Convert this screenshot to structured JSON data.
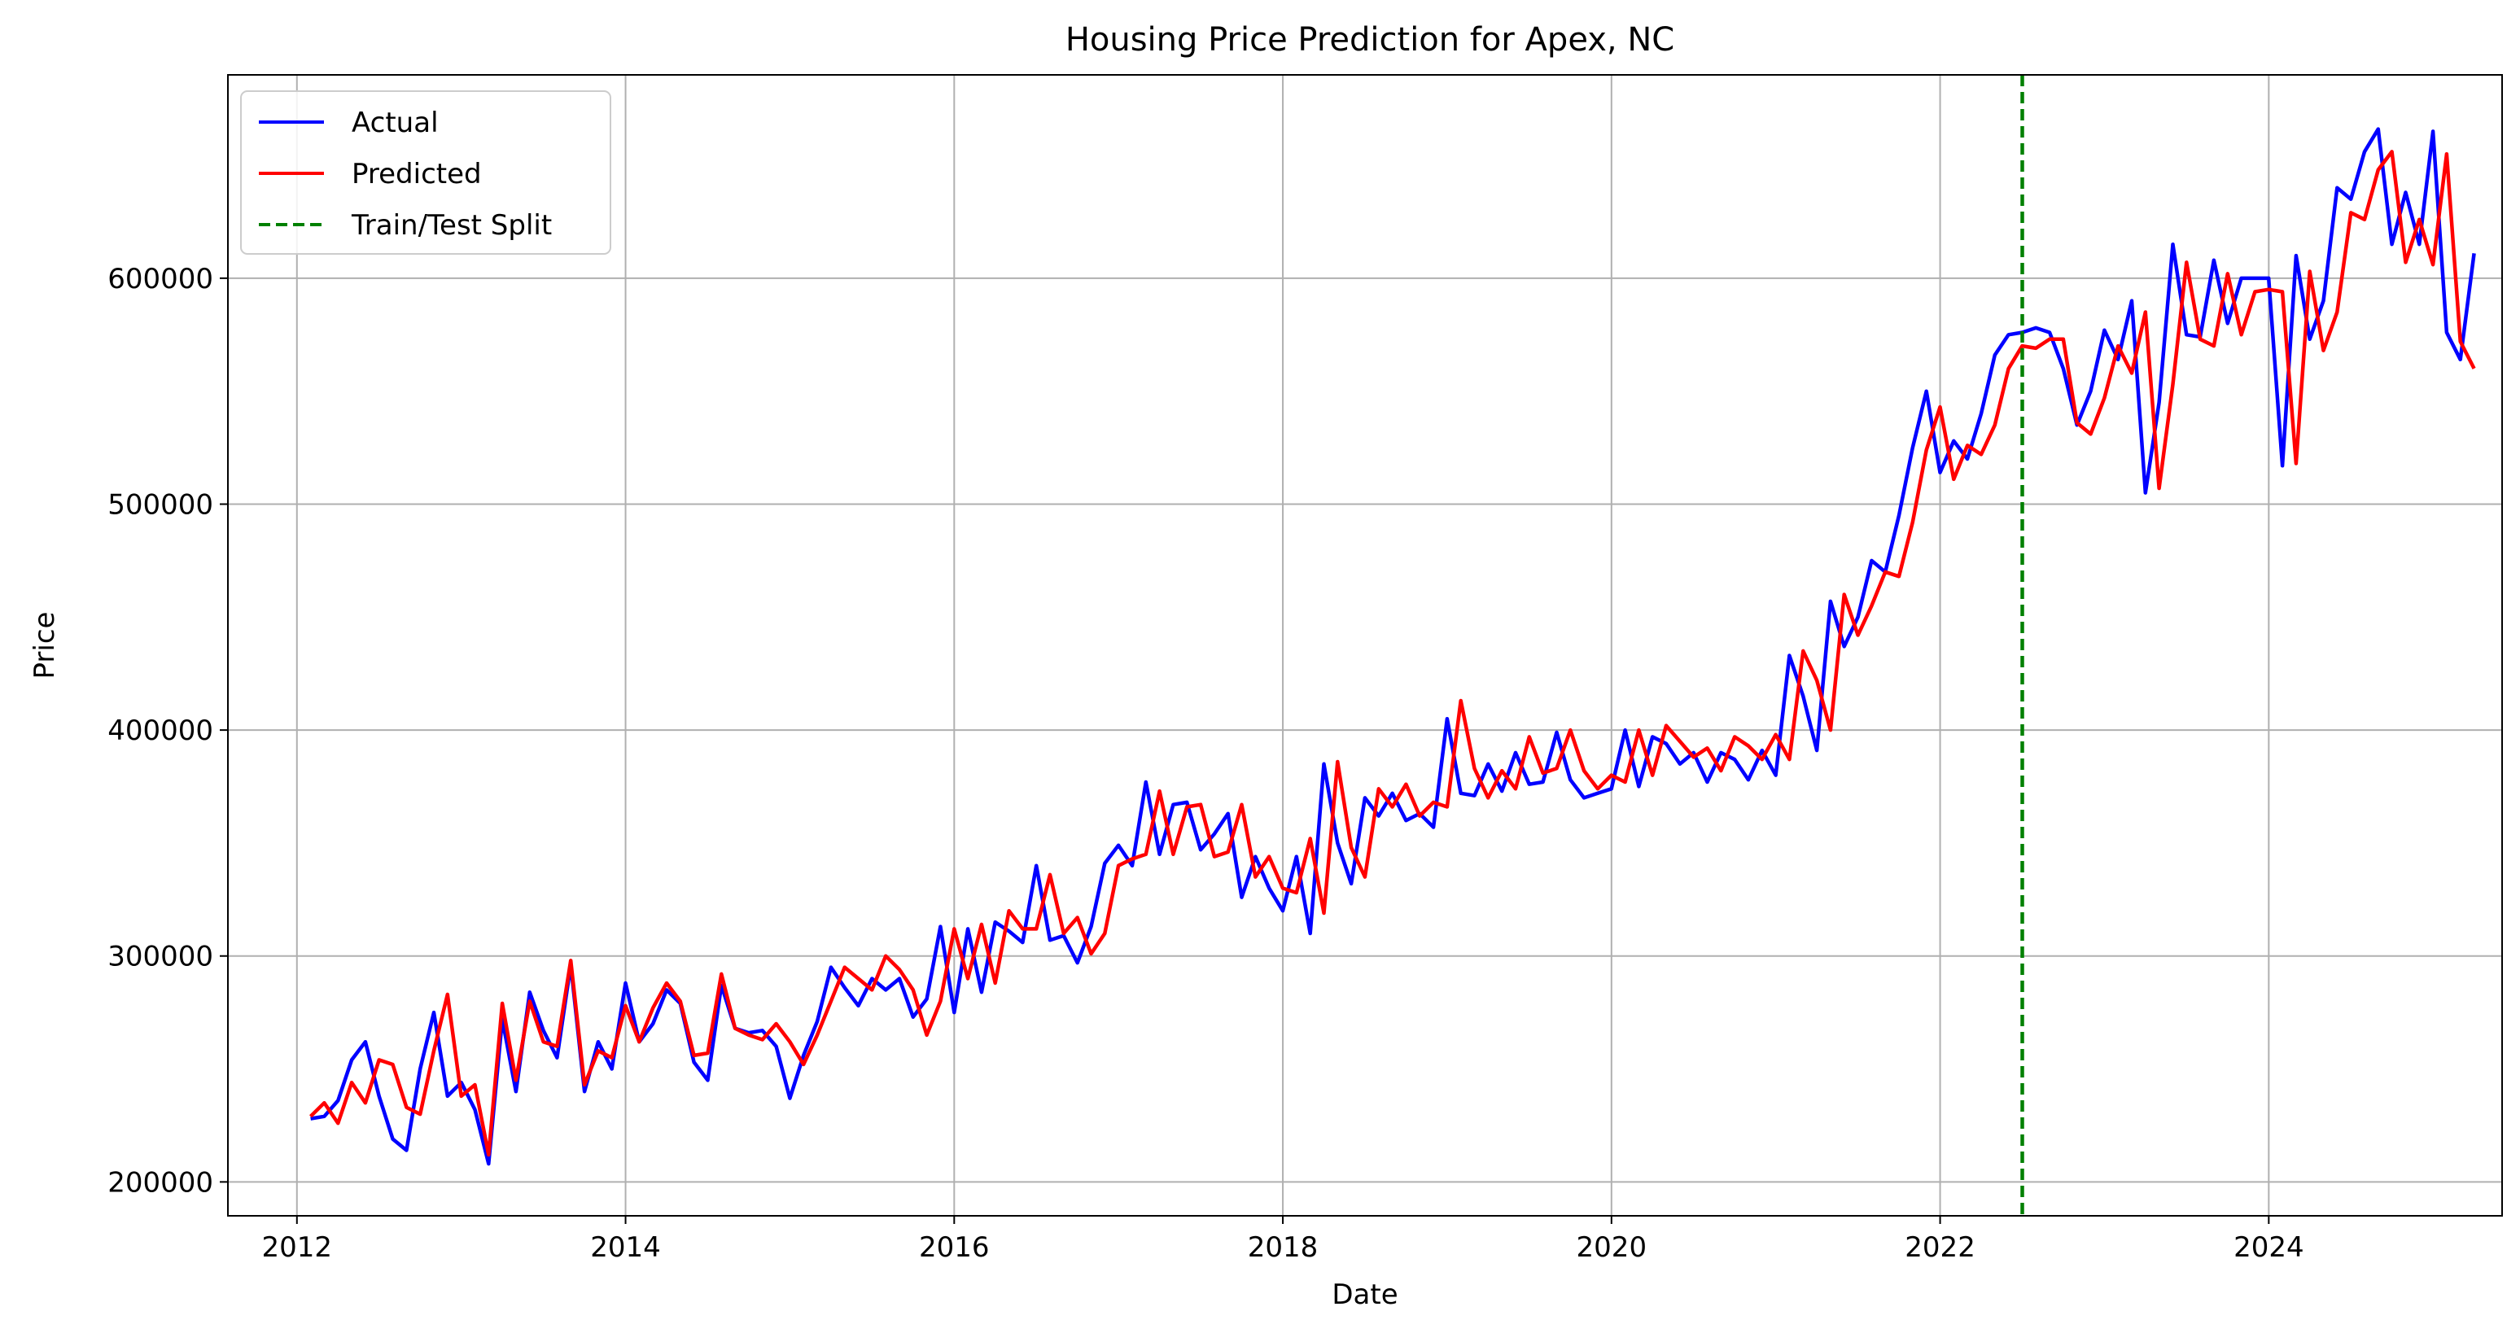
{
  "chart_data": {
    "type": "line",
    "title": "Housing Price Prediction for Apex, NC",
    "xlabel": "Date",
    "ylabel": "Price",
    "xlim": [
      2011.58,
      2025.42
    ],
    "ylim": [
      185000,
      690000
    ],
    "x_ticks": [
      2012,
      2014,
      2016,
      2018,
      2020,
      2022,
      2024
    ],
    "x_tick_labels": [
      "2012",
      "2014",
      "2016",
      "2018",
      "2020",
      "2022",
      "2024"
    ],
    "y_ticks": [
      200000,
      300000,
      400000,
      500000,
      600000
    ],
    "y_tick_labels": [
      "200000",
      "300000",
      "400000",
      "500000",
      "600000"
    ],
    "grid": true,
    "legend": {
      "placement": "upper-left",
      "entries": [
        "Actual",
        "Predicted",
        "Train/Test Split"
      ]
    },
    "split": {
      "label": "Train/Test Split",
      "x": 2022.5,
      "color": "#008000",
      "style": "dashed"
    },
    "x_start": 2012.0833,
    "x_step": 0.08333,
    "series": [
      {
        "name": "Actual",
        "color": "#0000ff",
        "values": [
          228000,
          229000,
          236000,
          254000,
          262000,
          238000,
          219000,
          214000,
          250000,
          275000,
          238000,
          244000,
          232000,
          208000,
          272000,
          240000,
          284000,
          267000,
          255000,
          296000,
          240000,
          262000,
          250000,
          288000,
          262000,
          270000,
          285000,
          279000,
          253000,
          245000,
          287000,
          268000,
          266000,
          267000,
          260000,
          237000,
          256000,
          271000,
          295000,
          286000,
          278000,
          290000,
          285000,
          290000,
          273000,
          281000,
          313000,
          275000,
          312000,
          284000,
          315000,
          311000,
          306000,
          340000,
          307000,
          309000,
          297000,
          313000,
          341000,
          349000,
          340000,
          377000,
          345000,
          367000,
          368000,
          347000,
          354000,
          363000,
          326000,
          344000,
          330000,
          320000,
          344000,
          310000,
          385000,
          350000,
          332000,
          370000,
          362000,
          372000,
          360000,
          363000,
          357000,
          405000,
          372000,
          371000,
          385000,
          373000,
          390000,
          376000,
          377000,
          399000,
          378000,
          370000,
          372000,
          374000,
          400000,
          375000,
          397000,
          394000,
          385000,
          390000,
          377000,
          390000,
          387000,
          378000,
          391000,
          380000,
          433000,
          415000,
          391000,
          457000,
          437000,
          450000,
          475000,
          470000,
          495000,
          525000,
          550000,
          514000,
          528000,
          520000,
          540000,
          566000,
          575000,
          576000,
          578000,
          576000,
          560000,
          535000,
          550000,
          577000,
          564000,
          590000,
          505000,
          545000,
          615000,
          575000,
          574000,
          608000,
          580000,
          600000,
          600000,
          600000,
          517000,
          610000,
          573000,
          590000,
          640000,
          635000,
          656000,
          666000,
          615000,
          638000,
          615000,
          665000,
          576000,
          564000,
          611000
        ]
      },
      {
        "name": "Predicted",
        "color": "#ff0000",
        "values": [
          229000,
          235000,
          226000,
          244000,
          235000,
          254000,
          252000,
          233000,
          230000,
          258000,
          283000,
          238000,
          243000,
          212000,
          279000,
          245000,
          280000,
          262000,
          260000,
          298000,
          243000,
          258000,
          255000,
          278000,
          262000,
          277000,
          288000,
          280000,
          256000,
          257000,
          292000,
          268000,
          265000,
          263000,
          270000,
          262000,
          252000,
          265000,
          280000,
          295000,
          290000,
          285000,
          300000,
          294000,
          285000,
          265000,
          280000,
          312000,
          290000,
          314000,
          288000,
          320000,
          312000,
          312000,
          336000,
          310000,
          317000,
          301000,
          310000,
          340000,
          343000,
          345000,
          373000,
          345000,
          366000,
          367000,
          344000,
          346000,
          367000,
          335000,
          344000,
          330000,
          328000,
          352000,
          319000,
          386000,
          348000,
          335000,
          374000,
          366000,
          376000,
          362000,
          368000,
          366000,
          413000,
          383000,
          370000,
          382000,
          374000,
          397000,
          381000,
          383000,
          400000,
          382000,
          374000,
          380000,
          377000,
          400000,
          380000,
          402000,
          395000,
          388000,
          392000,
          382000,
          397000,
          393000,
          387000,
          398000,
          387000,
          435000,
          422000,
          400000,
          460000,
          442000,
          455000,
          470000,
          468000,
          492000,
          524000,
          543000,
          511000,
          526000,
          522000,
          535000,
          560000,
          570000,
          569000,
          573000,
          573000,
          536000,
          531000,
          547000,
          570000,
          558000,
          585000,
          507000,
          553000,
          607000,
          573000,
          570000,
          602000,
          575000,
          594000,
          595000,
          594000,
          518000,
          603000,
          568000,
          585000,
          629000,
          626000,
          648000,
          656000,
          607000,
          626000,
          606000,
          655000,
          572000,
          560000
        ]
      }
    ]
  }
}
